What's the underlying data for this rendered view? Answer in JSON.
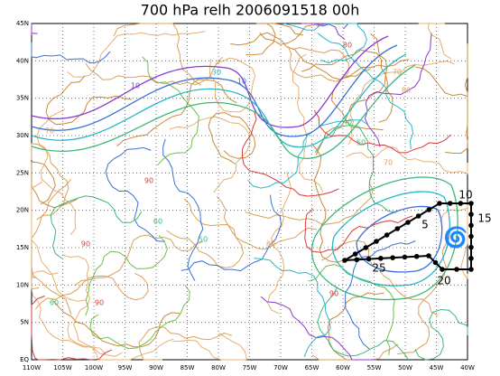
{
  "title": "700 hPa relh 2006091518 00h",
  "lat_labels": [
    "45N",
    "40N",
    "35N",
    "30N",
    "25N",
    "20N",
    "15N",
    "10N",
    "5N",
    "EQ"
  ],
  "lon_labels": [
    "110W",
    "105W",
    "100W",
    "95W",
    "90W",
    "85W",
    "80W",
    "75W",
    "70W",
    "65W",
    "60W",
    "55W",
    "50W",
    "45W",
    "40W"
  ],
  "track_labels": [
    "5",
    "10",
    "15",
    "20",
    "25"
  ],
  "contour_labels": [
    "10",
    "10",
    "30",
    "40",
    "50",
    "70",
    "80",
    "90",
    "90",
    "90",
    "60",
    "50",
    "80",
    "70",
    "90",
    "70",
    "80",
    "60"
  ]
}
